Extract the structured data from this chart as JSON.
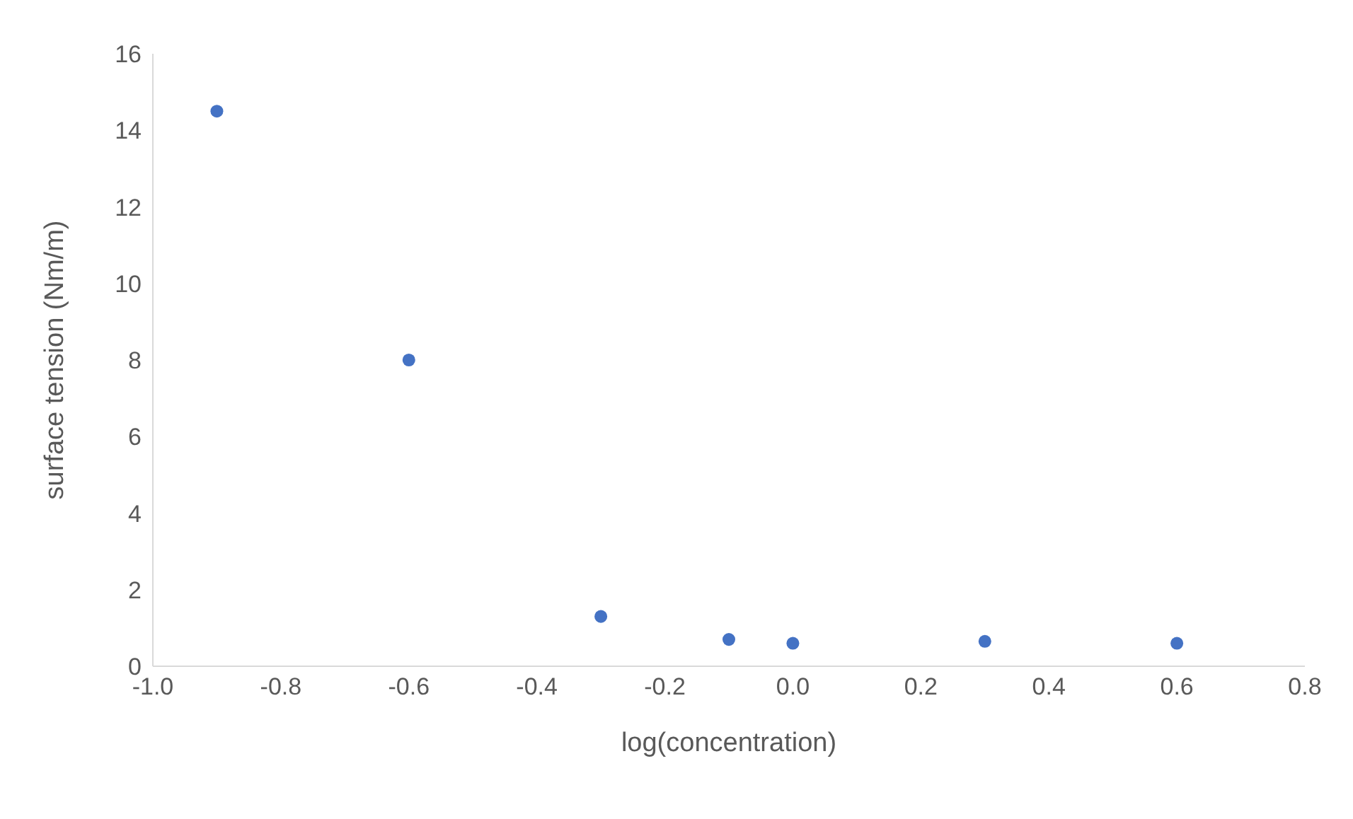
{
  "chart_data": {
    "type": "scatter",
    "xlabel": "log(concentration)",
    "ylabel": "surface tension (Nm/m)",
    "x": [
      -0.9,
      -0.6,
      -0.3,
      -0.1,
      0.0,
      0.3,
      0.6
    ],
    "series": [
      {
        "color": "#4472c4",
        "values": [
          14.5,
          8.0,
          1.3,
          0.7,
          0.6,
          0.65,
          0.6
        ]
      }
    ],
    "xlim": [
      -1.0,
      0.8
    ],
    "xticks": [
      {
        "value": -1.0,
        "label": "-1.0"
      },
      {
        "value": -0.8,
        "label": "-0.8"
      },
      {
        "value": -0.6,
        "label": "-0.6"
      },
      {
        "value": -0.4,
        "label": "-0.4"
      },
      {
        "value": -0.2,
        "label": "-0.2"
      },
      {
        "value": 0,
        "label": "0.0"
      },
      {
        "value": 0.2,
        "label": "0.2"
      },
      {
        "value": 0.4,
        "label": "0.4"
      },
      {
        "value": 0.6,
        "label": "0.6"
      },
      {
        "value": 0.8,
        "label": "0.8"
      }
    ],
    "ylim": [
      0,
      16
    ],
    "yticks": [
      0,
      2,
      4,
      6,
      8,
      10,
      12,
      14,
      16
    ],
    "grid": false,
    "legend": false,
    "marker": "circle"
  }
}
